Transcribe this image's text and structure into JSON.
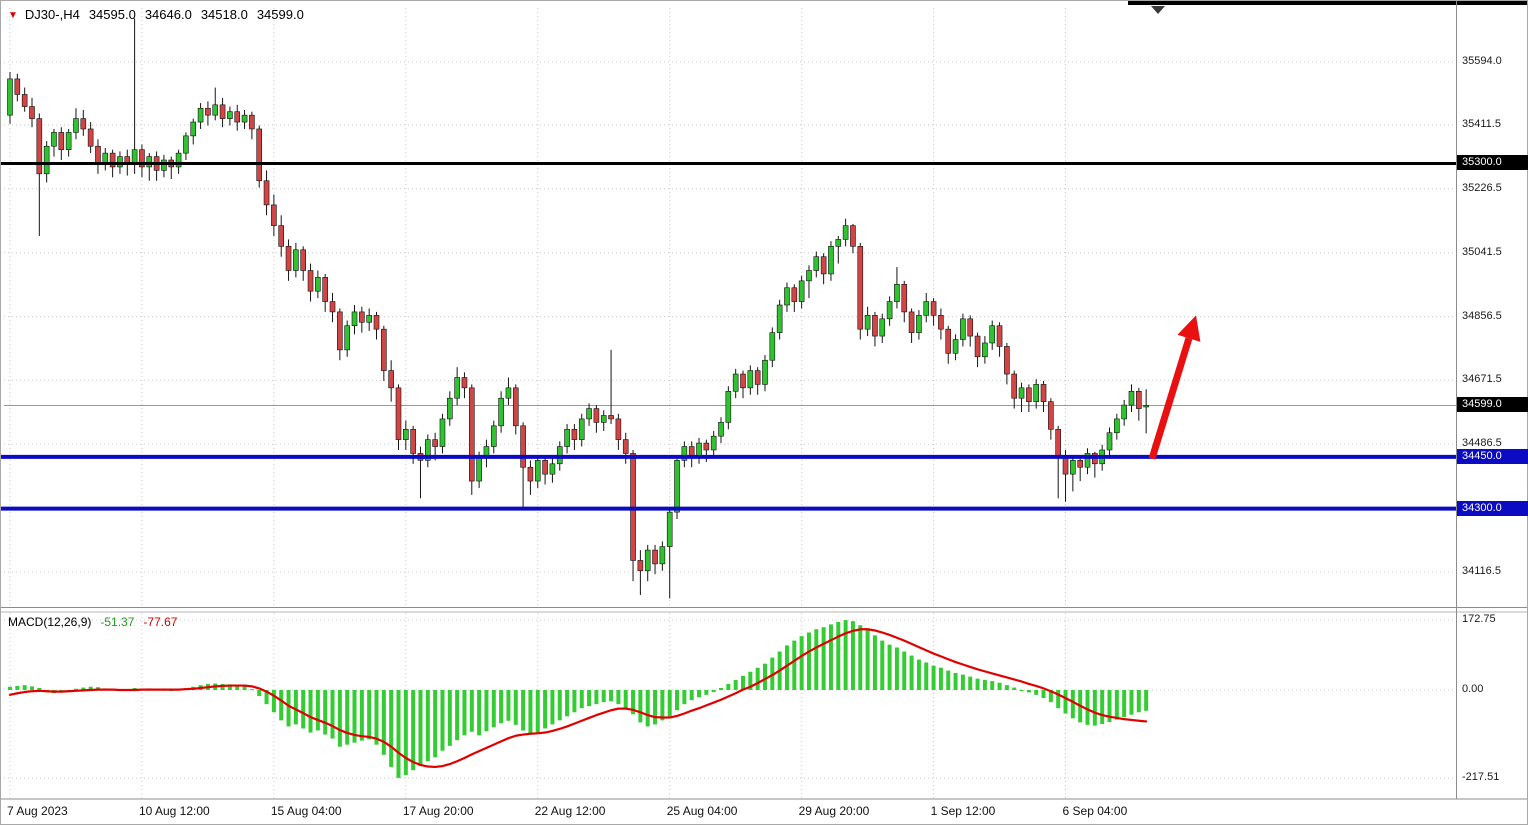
{
  "header": {
    "tick_icon": "▼",
    "symbol_period": "DJ30-,H4",
    "open": "34595.0",
    "high": "34646.0",
    "low": "34518.0",
    "close": "34599.0"
  },
  "colors": {
    "background": "#ffffff",
    "grid": "#c9c9c9",
    "candle_up": "#2fc42f",
    "candle_down": "#d24545",
    "wick": "#151515",
    "hline_black": "#000000",
    "hline_blue": "#0b0bc4",
    "current_price_line": "#9a9a9a",
    "macd_histogram": "#33cc33",
    "macd_signal": "#e00000",
    "arrow": "#e81010",
    "axis_text": "#1a1a1a"
  },
  "chart_data": {
    "type": "candlestick",
    "title": "DJ30- H4 candlestick chart with MACD indicator and support/resistance lines",
    "symbol": "DJ30-",
    "timeframe": "H4",
    "grid": "dotted",
    "x_tick_labels": [
      "7 Aug 2023",
      "10 Aug 12:00",
      "15 Aug 04:00",
      "17 Aug 20:00",
      "22 Aug 12:00",
      "25 Aug 04:00",
      "29 Aug 20:00",
      "1 Sep 12:00",
      "6 Sep 04:00"
    ],
    "x_tick_indices": [
      0,
      18,
      36,
      54,
      72,
      90,
      108,
      126,
      144
    ],
    "y_axis_labels": [
      {
        "price": 35594.0,
        "text": "35594.0"
      },
      {
        "price": 35411.5,
        "text": "35411.5"
      },
      {
        "price": 35226.5,
        "text": "35226.5"
      },
      {
        "price": 35041.5,
        "text": "35041.5"
      },
      {
        "price": 34856.5,
        "text": "34856.5"
      },
      {
        "price": 34671.5,
        "text": "34671.5"
      },
      {
        "price": 34486.5,
        "text": "34486.5"
      },
      {
        "price": 34116.5,
        "text": "34116.5"
      }
    ],
    "price_range_visible": [
      34025,
      35730
    ],
    "price_lines": [
      {
        "price": 35300.0,
        "label": "35300.0",
        "color": "#000000",
        "thickness": 3,
        "role": "resistance"
      },
      {
        "price": 34450.0,
        "label": "34450.0",
        "color": "#0b0bc4",
        "thickness": 4,
        "role": "support"
      },
      {
        "price": 34300.0,
        "label": "34300.0",
        "color": "#0b0bc4",
        "thickness": 4,
        "role": "support"
      }
    ],
    "current_price": {
      "price": 34599.0,
      "label": "34599.0"
    },
    "candles_ohlc": [
      [
        35440,
        35565,
        35415,
        35545
      ],
      [
        35545,
        35560,
        35480,
        35500
      ],
      [
        35500,
        35520,
        35450,
        35465
      ],
      [
        35465,
        35490,
        35405,
        35430
      ],
      [
        35430,
        35445,
        35090,
        35270
      ],
      [
        35270,
        35365,
        35245,
        35350
      ],
      [
        35350,
        35400,
        35320,
        35390
      ],
      [
        35390,
        35405,
        35310,
        35340
      ],
      [
        35340,
        35400,
        35320,
        35390
      ],
      [
        35390,
        35460,
        35370,
        35430
      ],
      [
        35430,
        35455,
        35380,
        35400
      ],
      [
        35400,
        35420,
        35330,
        35350
      ],
      [
        35350,
        35370,
        35270,
        35300
      ],
      [
        35300,
        35345,
        35280,
        35330
      ],
      [
        35330,
        35340,
        35260,
        35290
      ],
      [
        35290,
        35335,
        35270,
        35320
      ],
      [
        35320,
        35340,
        35265,
        35300
      ],
      [
        35300,
        35720,
        35270,
        35340
      ],
      [
        35340,
        35355,
        35260,
        35290
      ],
      [
        35290,
        35330,
        35250,
        35320
      ],
      [
        35320,
        35335,
        35250,
        35280
      ],
      [
        35280,
        35325,
        35260,
        35310
      ],
      [
        35310,
        35320,
        35255,
        35290
      ],
      [
        35290,
        35340,
        35270,
        35330
      ],
      [
        35330,
        35390,
        35310,
        35380
      ],
      [
        35380,
        35430,
        35355,
        35420
      ],
      [
        35420,
        35475,
        35400,
        35460
      ],
      [
        35460,
        35480,
        35410,
        35440
      ],
      [
        35440,
        35520,
        35425,
        35470
      ],
      [
        35470,
        35490,
        35405,
        35430
      ],
      [
        35430,
        35465,
        35410,
        35450
      ],
      [
        35450,
        35470,
        35395,
        35420
      ],
      [
        35420,
        35455,
        35400,
        35440
      ],
      [
        35440,
        35450,
        35370,
        35400
      ],
      [
        35400,
        35410,
        35230,
        35250
      ],
      [
        35250,
        35280,
        35150,
        35180
      ],
      [
        35180,
        35210,
        35090,
        35120
      ],
      [
        35120,
        35150,
        35030,
        35060
      ],
      [
        35060,
        35080,
        34960,
        34990
      ],
      [
        34990,
        35070,
        34970,
        35050
      ],
      [
        35050,
        35060,
        34960,
        34990
      ],
      [
        34990,
        35010,
        34900,
        34930
      ],
      [
        34930,
        34990,
        34910,
        34970
      ],
      [
        34970,
        34980,
        34870,
        34900
      ],
      [
        34900,
        34925,
        34840,
        34870
      ],
      [
        34870,
        34880,
        34730,
        34760
      ],
      [
        34760,
        34845,
        34740,
        34830
      ],
      [
        34830,
        34890,
        34805,
        34870
      ],
      [
        34870,
        34885,
        34810,
        34840
      ],
      [
        34840,
        34880,
        34815,
        34860
      ],
      [
        34860,
        34870,
        34790,
        34820
      ],
      [
        34820,
        34830,
        34670,
        34700
      ],
      [
        34700,
        34730,
        34610,
        34650
      ],
      [
        34650,
        34660,
        34470,
        34500
      ],
      [
        34500,
        34555,
        34470,
        34530
      ],
      [
        34530,
        34540,
        34430,
        34460
      ],
      [
        34460,
        34480,
        34330,
        34440
      ],
      [
        34440,
        34515,
        34420,
        34500
      ],
      [
        34500,
        34520,
        34440,
        34480
      ],
      [
        34480,
        34575,
        34460,
        34560
      ],
      [
        34560,
        34640,
        34540,
        34620
      ],
      [
        34620,
        34710,
        34600,
        34680
      ],
      [
        34680,
        34695,
        34620,
        34650
      ],
      [
        34650,
        34660,
        34340,
        34380
      ],
      [
        34380,
        34465,
        34360,
        34450
      ],
      [
        34450,
        34500,
        34420,
        34480
      ],
      [
        34480,
        34555,
        34460,
        34540
      ],
      [
        34540,
        34640,
        34520,
        34620
      ],
      [
        34620,
        34680,
        34600,
        34650
      ],
      [
        34650,
        34660,
        34515,
        34540
      ],
      [
        34540,
        34550,
        34300,
        34420
      ],
      [
        34420,
        34440,
        34340,
        34380
      ],
      [
        34380,
        34455,
        34360,
        34440
      ],
      [
        34440,
        34450,
        34370,
        34400
      ],
      [
        34400,
        34445,
        34375,
        34430
      ],
      [
        34430,
        34495,
        34410,
        34480
      ],
      [
        34480,
        34545,
        34460,
        34530
      ],
      [
        34530,
        34545,
        34470,
        34500
      ],
      [
        34500,
        34575,
        34480,
        34560
      ],
      [
        34560,
        34605,
        34540,
        34590
      ],
      [
        34590,
        34600,
        34520,
        34550
      ],
      [
        34550,
        34585,
        34525,
        34570
      ],
      [
        34570,
        34760,
        34545,
        34560
      ],
      [
        34560,
        34575,
        34470,
        34500
      ],
      [
        34500,
        34520,
        34430,
        34460
      ],
      [
        34460,
        34470,
        34090,
        34150
      ],
      [
        34150,
        34180,
        34050,
        34120
      ],
      [
        34120,
        34195,
        34090,
        34180
      ],
      [
        34180,
        34195,
        34110,
        34140
      ],
      [
        34140,
        34205,
        34120,
        34190
      ],
      [
        34190,
        34300,
        34040,
        34290
      ],
      [
        34290,
        34455,
        34270,
        34440
      ],
      [
        34440,
        34495,
        34420,
        34480
      ],
      [
        34480,
        34495,
        34420,
        34450
      ],
      [
        34450,
        34505,
        34430,
        34490
      ],
      [
        34490,
        34500,
        34435,
        34470
      ],
      [
        34470,
        34525,
        34450,
        34510
      ],
      [
        34510,
        34565,
        34490,
        34550
      ],
      [
        34550,
        34655,
        34530,
        34640
      ],
      [
        34640,
        34705,
        34620,
        34690
      ],
      [
        34690,
        34700,
        34620,
        34650
      ],
      [
        34650,
        34715,
        34630,
        34700
      ],
      [
        34700,
        34710,
        34630,
        34660
      ],
      [
        34660,
        34745,
        34640,
        34730
      ],
      [
        34730,
        34825,
        34710,
        34810
      ],
      [
        34810,
        34905,
        34790,
        34890
      ],
      [
        34890,
        34955,
        34870,
        34940
      ],
      [
        34940,
        34950,
        34870,
        34900
      ],
      [
        34900,
        34975,
        34880,
        34960
      ],
      [
        34960,
        35005,
        34910,
        34990
      ],
      [
        34990,
        35045,
        34970,
        35030
      ],
      [
        35030,
        35040,
        34950,
        34980
      ],
      [
        34980,
        35075,
        34960,
        35060
      ],
      [
        35060,
        35090,
        35010,
        35080
      ],
      [
        35080,
        35140,
        35060,
        35120
      ],
      [
        35120,
        35125,
        35040,
        35060
      ],
      [
        35060,
        35070,
        34790,
        34820
      ],
      [
        34820,
        34885,
        34800,
        34860
      ],
      [
        34860,
        34870,
        34770,
        34800
      ],
      [
        34800,
        34865,
        34780,
        34850
      ],
      [
        34850,
        34915,
        34830,
        34900
      ],
      [
        34900,
        35000,
        34880,
        34950
      ],
      [
        34950,
        34960,
        34840,
        34870
      ],
      [
        34870,
        34880,
        34780,
        34810
      ],
      [
        34810,
        34875,
        34790,
        34860
      ],
      [
        34860,
        34925,
        34840,
        34900
      ],
      [
        34900,
        34910,
        34830,
        34860
      ],
      [
        34860,
        34880,
        34790,
        34820
      ],
      [
        34820,
        34830,
        34720,
        34750
      ],
      [
        34750,
        34805,
        34730,
        34790
      ],
      [
        34790,
        34865,
        34770,
        34850
      ],
      [
        34850,
        34860,
        34770,
        34800
      ],
      [
        34800,
        34810,
        34710,
        34740
      ],
      [
        34740,
        34800,
        34720,
        34780
      ],
      [
        34780,
        34845,
        34760,
        34830
      ],
      [
        34830,
        34840,
        34740,
        34770
      ],
      [
        34770,
        34780,
        34660,
        34690
      ],
      [
        34690,
        34700,
        34590,
        34620
      ],
      [
        34620,
        34665,
        34580,
        34650
      ],
      [
        34650,
        34660,
        34580,
        34610
      ],
      [
        34610,
        34675,
        34590,
        34660
      ],
      [
        34660,
        34670,
        34580,
        34610
      ],
      [
        34610,
        34620,
        34500,
        34530
      ],
      [
        34530,
        34540,
        34330,
        34450
      ],
      [
        34450,
        34470,
        34320,
        34400
      ],
      [
        34400,
        34455,
        34350,
        34440
      ],
      [
        34440,
        34450,
        34380,
        34420
      ],
      [
        34420,
        34475,
        34400,
        34460
      ],
      [
        34460,
        34465,
        34390,
        34430
      ],
      [
        34430,
        34485,
        34410,
        34470
      ],
      [
        34470,
        34535,
        34450,
        34520
      ],
      [
        34520,
        34575,
        34500,
        34560
      ],
      [
        34560,
        34615,
        34540,
        34600
      ],
      [
        34600,
        34660,
        34580,
        34640
      ],
      [
        34640,
        34650,
        34555,
        34590
      ],
      [
        34595,
        34646,
        34518,
        34599
      ]
    ],
    "macd": {
      "label": "MACD(12,26,9)",
      "macd_value": "-51.37",
      "signal_value": "-77.67",
      "axis_labels": [
        {
          "value": 172.75,
          "text": "172.75"
        },
        {
          "value": 0,
          "text": "0.00"
        },
        {
          "value": -217.51,
          "text": "-217.51"
        }
      ],
      "histogram": [
        8,
        10,
        12,
        9,
        5,
        -5,
        -8,
        -4,
        0,
        3,
        6,
        8,
        7,
        4,
        2,
        0,
        2,
        5,
        3,
        4,
        2,
        1,
        0,
        2,
        5,
        8,
        12,
        15,
        16,
        15,
        14,
        12,
        10,
        2,
        -15,
        -35,
        -55,
        -75,
        -90,
        -85,
        -95,
        -105,
        -100,
        -110,
        -120,
        -140,
        -135,
        -130,
        -125,
        -122,
        -135,
        -160,
        -190,
        -217,
        -210,
        -198,
        -188,
        -176,
        -166,
        -150,
        -138,
        -124,
        -112,
        -103,
        -112,
        -102,
        -92,
        -82,
        -76,
        -86,
        -100,
        -110,
        -105,
        -95,
        -85,
        -75,
        -65,
        -55,
        -45,
        -40,
        -35,
        -30,
        -28,
        -35,
        -45,
        -60,
        -80,
        -90,
        -85,
        -75,
        -65,
        -50,
        -35,
        -25,
        -18,
        -12,
        -5,
        5,
        15,
        25,
        35,
        45,
        55,
        65,
        80,
        95,
        110,
        122,
        133,
        142,
        150,
        155,
        162,
        168,
        172.7,
        170,
        160,
        148,
        135,
        122,
        112,
        105,
        95,
        85,
        75,
        68,
        60,
        55,
        48,
        42,
        38,
        33,
        28,
        25,
        22,
        18,
        12,
        6,
        0,
        -6,
        -12,
        -20,
        -30,
        -45,
        -58,
        -70,
        -80,
        -86,
        -88,
        -84,
        -79,
        -73,
        -67,
        -61,
        -55,
        -51.37
      ],
      "signal": [
        -12,
        -8,
        -5,
        -3,
        -2,
        -3,
        -4,
        -4,
        -3,
        -2,
        -1,
        0,
        1,
        1,
        1,
        0,
        0,
        0,
        1,
        1,
        1,
        1,
        1,
        1,
        2,
        3,
        5,
        7,
        9,
        10,
        11,
        11,
        11,
        9,
        4,
        -4,
        -14,
        -26,
        -39,
        -48,
        -57,
        -67,
        -74,
        -81,
        -89,
        -99,
        -106,
        -111,
        -114,
        -116,
        -120,
        -128,
        -140,
        -155,
        -168,
        -178,
        -185,
        -189,
        -190,
        -188,
        -183,
        -176,
        -168,
        -159,
        -151,
        -143,
        -135,
        -127,
        -119,
        -113,
        -110,
        -108,
        -107,
        -105,
        -101,
        -96,
        -90,
        -83,
        -76,
        -69,
        -62,
        -56,
        -50,
        -46,
        -46,
        -49,
        -55,
        -62,
        -67,
        -68,
        -68,
        -64,
        -58,
        -51,
        -45,
        -38,
        -31,
        -24,
        -16,
        -8,
        1,
        8,
        17,
        27,
        37,
        48,
        60,
        72,
        84,
        95,
        105,
        114,
        123,
        132,
        140,
        146,
        150,
        150,
        147,
        142,
        136,
        129,
        122,
        114,
        106,
        98,
        90,
        83,
        76,
        69,
        63,
        57,
        51,
        46,
        41,
        36,
        31,
        26,
        21,
        15,
        10,
        4,
        -3,
        -11,
        -20,
        -29,
        -39,
        -48,
        -56,
        -62,
        -66,
        -69,
        -72,
        -74,
        -76,
        -77.67
      ]
    },
    "annotations": [
      {
        "type": "arrow",
        "direction": "up-right",
        "color": "#e81010",
        "from_index": 155.8,
        "from_price": 34445,
        "to_index": 161.8,
        "to_price": 34860
      }
    ]
  }
}
